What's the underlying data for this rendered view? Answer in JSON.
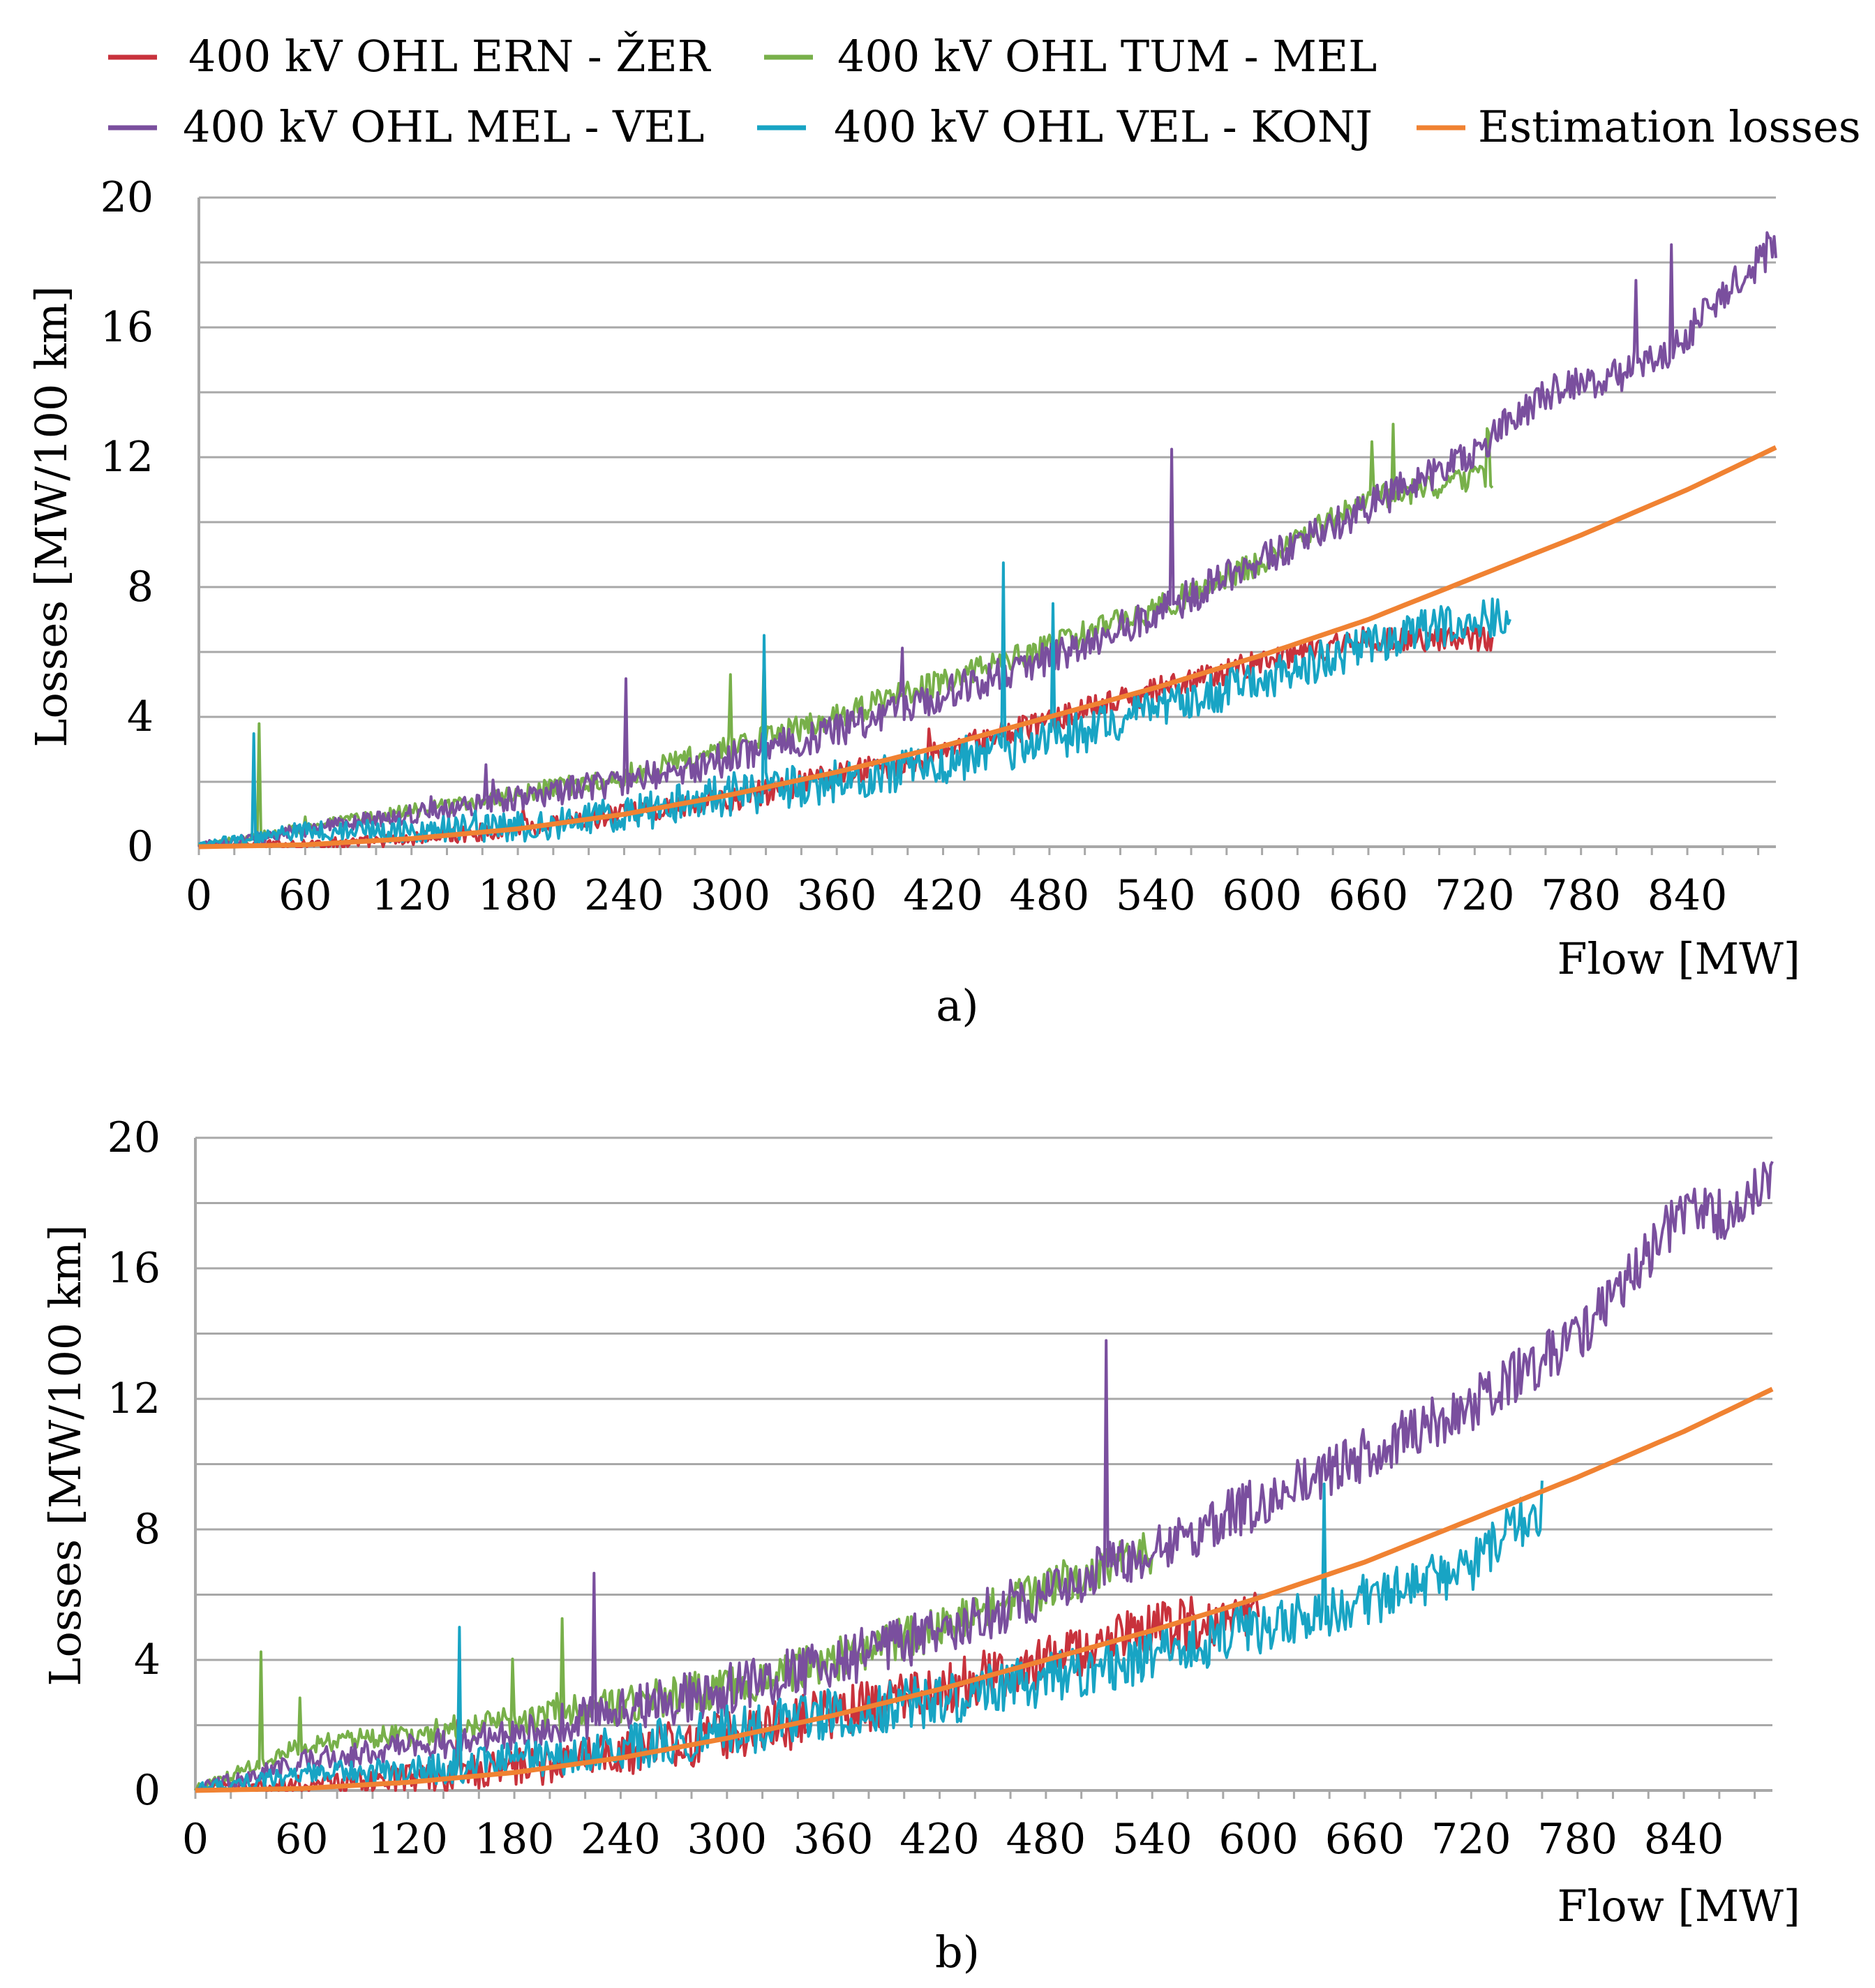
{
  "legend": {
    "items": [
      {
        "label": "400 kV OHL ERN - ŽER",
        "color": "#c8323c"
      },
      {
        "label": "400 kV OHL TUM - MEL",
        "color": "#78b04a"
      },
      {
        "label": "400 kV OHL MEL - VEL",
        "color": "#7a4f9e"
      },
      {
        "label": "400 kV OHL VEL - KONJ",
        "color": "#18a4c4"
      },
      {
        "label": "Estimation losses",
        "color": "#f08232"
      }
    ]
  },
  "chart_data": [
    {
      "type": "line",
      "panel_label": "a)",
      "xlabel": "Flow [MW]",
      "ylabel": "Losses [MW/100 km]",
      "xlim": [
        0,
        890
      ],
      "ylim": [
        0,
        20
      ],
      "xticks": [
        0,
        60,
        120,
        180,
        240,
        300,
        360,
        420,
        480,
        540,
        600,
        660,
        720,
        780,
        840
      ],
      "yticks": [
        0,
        4,
        8,
        12,
        16,
        20
      ],
      "grid": true,
      "series": [
        {
          "name": "400 kV OHL ERN - ŽER",
          "noise": 0.3,
          "points": [
            [
              0,
              0
            ],
            [
              100,
              0.15
            ],
            [
              200,
              0.65
            ],
            [
              300,
              1.45
            ],
            [
              420,
              2.9
            ],
            [
              500,
              4.2
            ],
            [
              540,
              4.8
            ],
            [
              600,
              5.7
            ],
            [
              660,
              6.4
            ],
            [
              730,
              6.4
            ]
          ]
        },
        {
          "name": "400 kV OHL TUM - MEL",
          "noise": 0.3,
          "points": [
            [
              0,
              0
            ],
            [
              60,
              0.6
            ],
            [
              120,
              1.1
            ],
            [
              180,
              1.6
            ],
            [
              240,
              2.2
            ],
            [
              300,
              3.0
            ],
            [
              360,
              4.0
            ],
            [
              420,
              5.1
            ],
            [
              480,
              6.2
            ],
            [
              540,
              7.3
            ],
            [
              600,
              8.8
            ],
            [
              660,
              10.7
            ],
            [
              730,
              11.4
            ]
          ]
        },
        {
          "name": "400 kV OHL MEL - VEL",
          "noise": 0.4,
          "points": [
            [
              0,
              0
            ],
            [
              60,
              0.5
            ],
            [
              120,
              1.0
            ],
            [
              180,
              1.5
            ],
            [
              240,
              2.0
            ],
            [
              300,
              2.7
            ],
            [
              360,
              3.6
            ],
            [
              420,
              4.7
            ],
            [
              480,
              5.8
            ],
            [
              540,
              7.2
            ],
            [
              600,
              8.8
            ],
            [
              660,
              10.5
            ],
            [
              720,
              12.2
            ],
            [
              760,
              14.0
            ],
            [
              800,
              14.5
            ],
            [
              830,
              15.2
            ],
            [
              860,
              17.0
            ],
            [
              890,
              18.5
            ]
          ]
        },
        {
          "name": "400 kV OHL VEL - KONJ",
          "noise": 0.5,
          "points": [
            [
              0,
              0
            ],
            [
              60,
              0.5
            ],
            [
              120,
              0.5
            ],
            [
              180,
              0.6
            ],
            [
              240,
              1.0
            ],
            [
              300,
              1.6
            ],
            [
              360,
              2.0
            ],
            [
              420,
              2.6
            ],
            [
              480,
              3.3
            ],
            [
              540,
              4.1
            ],
            [
              600,
              5.2
            ],
            [
              660,
              6.2
            ],
            [
              700,
              6.8
            ],
            [
              740,
              7.2
            ]
          ]
        },
        {
          "name": "Estimation losses",
          "noise": 0,
          "points": [
            [
              0,
              0
            ],
            [
              60,
              0.06
            ],
            [
              120,
              0.25
            ],
            [
              180,
              0.55
            ],
            [
              240,
              1.0
            ],
            [
              300,
              1.6
            ],
            [
              360,
              2.3
            ],
            [
              420,
              3.1
            ],
            [
              480,
              4.0
            ],
            [
              540,
              4.9
            ],
            [
              600,
              5.9
            ],
            [
              660,
              7.0
            ],
            [
              720,
              8.3
            ],
            [
              780,
              9.6
            ],
            [
              840,
              11.0
            ],
            [
              890,
              12.3
            ]
          ]
        }
      ]
    },
    {
      "type": "line",
      "panel_label": "b)",
      "xlabel": "Flow [MW]",
      "ylabel": "Losses [MW/100 km]",
      "xlim": [
        0,
        890
      ],
      "ylim": [
        0,
        20
      ],
      "xticks": [
        0,
        60,
        120,
        180,
        240,
        300,
        360,
        420,
        480,
        540,
        600,
        660,
        720,
        780,
        840
      ],
      "yticks": [
        0,
        4,
        8,
        12,
        16,
        20
      ],
      "grid": true,
      "series": [
        {
          "name": "400 kV OHL ERN - ŽER",
          "noise": 0.6,
          "points": [
            [
              0,
              0
            ],
            [
              100,
              0.25
            ],
            [
              200,
              0.8
            ],
            [
              300,
              1.6
            ],
            [
              420,
              3.1
            ],
            [
              480,
              4.0
            ],
            [
              540,
              4.9
            ],
            [
              600,
              5.5
            ]
          ]
        },
        {
          "name": "400 kV OHL TUM - MEL",
          "noise": 0.5,
          "points": [
            [
              0,
              0
            ],
            [
              60,
              1.4
            ],
            [
              120,
              1.7
            ],
            [
              180,
              2.1
            ],
            [
              240,
              2.6
            ],
            [
              300,
              3.2
            ],
            [
              360,
              4.0
            ],
            [
              420,
              5.0
            ],
            [
              480,
              6.2
            ],
            [
              540,
              7.3
            ]
          ]
        },
        {
          "name": "400 kV OHL MEL - VEL",
          "noise": 0.6,
          "points": [
            [
              0,
              0
            ],
            [
              60,
              0.9
            ],
            [
              120,
              1.3
            ],
            [
              180,
              1.8
            ],
            [
              240,
              2.4
            ],
            [
              300,
              3.1
            ],
            [
              360,
              3.9
            ],
            [
              420,
              4.9
            ],
            [
              480,
              6.1
            ],
            [
              540,
              7.4
            ],
            [
              600,
              8.8
            ],
            [
              660,
              10.3
            ],
            [
              720,
              11.8
            ],
            [
              780,
              13.9
            ],
            [
              820,
              16.4
            ],
            [
              840,
              17.8
            ],
            [
              860,
              17.6
            ],
            [
              890,
              18.6
            ]
          ]
        },
        {
          "name": "400 kV OHL VEL - KONJ",
          "noise": 0.6,
          "points": [
            [
              0,
              0
            ],
            [
              60,
              0.5
            ],
            [
              120,
              0.6
            ],
            [
              180,
              0.9
            ],
            [
              240,
              1.3
            ],
            [
              300,
              1.8
            ],
            [
              360,
              2.3
            ],
            [
              420,
              2.8
            ],
            [
              480,
              3.4
            ],
            [
              540,
              4.1
            ],
            [
              600,
              5.0
            ],
            [
              660,
              5.8
            ],
            [
              720,
              6.9
            ],
            [
              760,
              8.7
            ]
          ]
        },
        {
          "name": "Estimation losses",
          "noise": 0,
          "points": [
            [
              0,
              0
            ],
            [
              60,
              0.06
            ],
            [
              120,
              0.25
            ],
            [
              180,
              0.55
            ],
            [
              240,
              1.0
            ],
            [
              300,
              1.6
            ],
            [
              360,
              2.3
            ],
            [
              420,
              3.1
            ],
            [
              480,
              4.0
            ],
            [
              540,
              4.9
            ],
            [
              600,
              5.9
            ],
            [
              660,
              7.0
            ],
            [
              720,
              8.3
            ],
            [
              780,
              9.6
            ],
            [
              840,
              11.0
            ],
            [
              890,
              12.3
            ]
          ]
        }
      ]
    }
  ]
}
